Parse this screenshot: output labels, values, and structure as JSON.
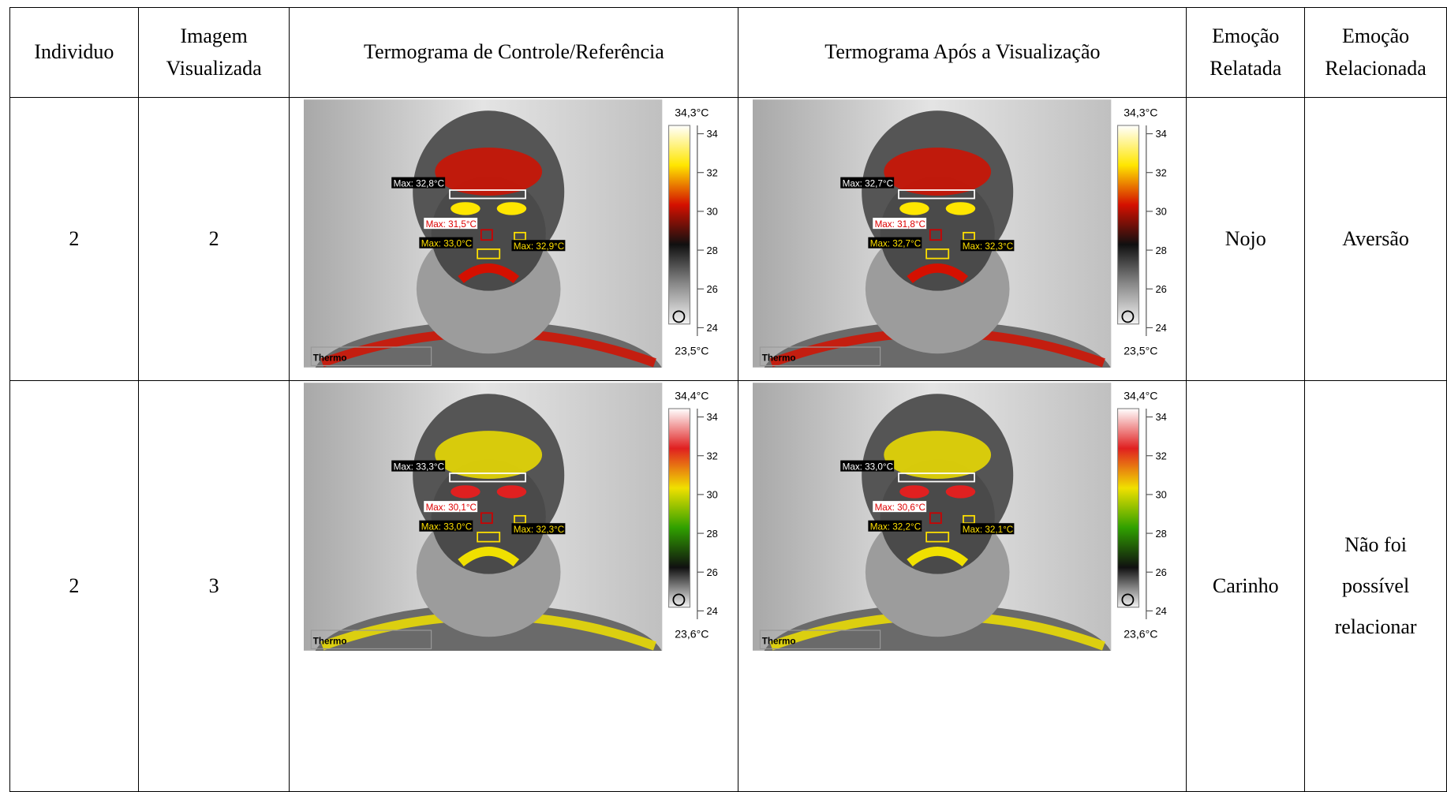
{
  "table": {
    "header": [
      "Individuo",
      "Imagem Visualizada",
      "Termograma de Controle/Referência",
      "Termograma Após a Visualização",
      "Emoção Relatada",
      "Emoção Relacionada"
    ],
    "rows": [
      {
        "individuo": "2",
        "imagem": "2",
        "controle": {
          "scale_max": "34,3°C",
          "scale_min": "23,5°C",
          "ticks": [
            34,
            32,
            30,
            28,
            26,
            24
          ],
          "labels": [
            "Max: 32,8°C",
            "Max: 31,5°C",
            "Max: 33,0°C",
            "Max: 32,9°C"
          ],
          "brand": "Thermo",
          "colormap": [
            "#ffffff",
            "#ffe600",
            "#d41000",
            "#101010",
            "#8a8a8a",
            "#f4f4f4"
          ]
        },
        "apos": {
          "scale_max": "34,3°C",
          "scale_min": "23,5°C",
          "ticks": [
            34,
            32,
            30,
            28,
            26,
            24
          ],
          "labels": [
            "Max: 32,7°C",
            "Max: 31,8°C",
            "Max: 32,7°C",
            "Max: 32,3°C"
          ],
          "brand": "Thermo",
          "colormap": [
            "#ffffff",
            "#ffe600",
            "#d41000",
            "#101010",
            "#8a8a8a",
            "#f4f4f4"
          ]
        },
        "relatada": "Nojo",
        "relacionada": "Aversão"
      },
      {
        "individuo": "2",
        "imagem": "3",
        "controle": {
          "scale_max": "34,4°C",
          "scale_min": "23,6°C",
          "ticks": [
            34,
            32,
            30,
            28,
            26,
            24
          ],
          "labels": [
            "Max: 33,3°C",
            "Max: 30,1°C",
            "Max: 33,0°C",
            "Max: 32,3°C"
          ],
          "brand": "Thermo",
          "colormap": [
            "#ffffff",
            "#e02020",
            "#f0e000",
            "#30a000",
            "#101010",
            "#f4f4f4"
          ]
        },
        "apos": {
          "scale_max": "34,4°C",
          "scale_min": "23,6°C",
          "ticks": [
            34,
            32,
            30,
            28,
            26,
            24
          ],
          "labels": [
            "Max: 33,0°C",
            "Max: 30,6°C",
            "Max: 32,2°C",
            "Max: 32,1°C"
          ],
          "brand": "Thermo",
          "colormap": [
            "#ffffff",
            "#e02020",
            "#f0e000",
            "#30a000",
            "#101010",
            "#f4f4f4"
          ]
        },
        "relatada": "Carinho",
        "relacionada": "Não foi possível relacionar"
      }
    ]
  }
}
